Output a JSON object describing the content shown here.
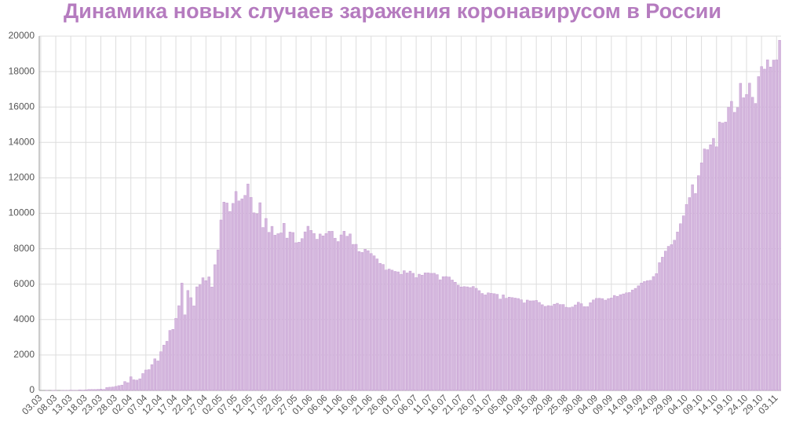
{
  "chart_data": {
    "type": "bar",
    "title": "Динамика новых случаев заражения коронавирусом в России",
    "categories": [
      "03.03",
      null,
      null,
      null,
      null,
      "08.03",
      null,
      null,
      null,
      null,
      "13.03",
      null,
      null,
      null,
      null,
      "18.03",
      null,
      null,
      null,
      null,
      "23.03",
      null,
      null,
      null,
      null,
      "28.03",
      null,
      null,
      null,
      null,
      "02.04",
      null,
      null,
      null,
      null,
      "07.04",
      null,
      null,
      null,
      null,
      "12.04",
      null,
      null,
      null,
      null,
      "17.04",
      null,
      null,
      null,
      null,
      "22.04",
      null,
      null,
      null,
      null,
      "27.04",
      null,
      null,
      null,
      null,
      "02.05",
      null,
      null,
      null,
      null,
      "07.05",
      null,
      null,
      null,
      null,
      "12.05",
      null,
      null,
      null,
      null,
      "17.05",
      null,
      null,
      null,
      null,
      "22.05",
      null,
      null,
      null,
      null,
      "27.05",
      null,
      null,
      null,
      null,
      "01.06",
      null,
      null,
      null,
      null,
      "06.06",
      null,
      null,
      null,
      null,
      "11.06",
      null,
      null,
      null,
      null,
      "16.06",
      null,
      null,
      null,
      null,
      "21.06",
      null,
      null,
      null,
      null,
      "26.06",
      null,
      null,
      null,
      null,
      "01.07",
      null,
      null,
      null,
      null,
      "06.07",
      null,
      null,
      null,
      null,
      "11.07",
      null,
      null,
      null,
      null,
      "16.07",
      null,
      null,
      null,
      null,
      "21.07",
      null,
      null,
      null,
      null,
      "26.07",
      null,
      null,
      null,
      null,
      "31.07",
      null,
      null,
      null,
      null,
      "05.08",
      null,
      null,
      null,
      null,
      "10.08",
      null,
      null,
      null,
      null,
      "15.08",
      null,
      null,
      null,
      null,
      "20.08",
      null,
      null,
      null,
      null,
      "25.08",
      null,
      null,
      null,
      null,
      "30.08",
      null,
      null,
      null,
      null,
      "04.09",
      null,
      null,
      null,
      null,
      "09.09",
      null,
      null,
      null,
      null,
      "14.09",
      null,
      null,
      null,
      null,
      "19.09",
      null,
      null,
      null,
      null,
      "24.09",
      null,
      null,
      null,
      null,
      "29.09",
      null,
      null,
      null,
      null,
      "04.10",
      null,
      null,
      null,
      null,
      "09.10",
      null,
      null,
      null,
      null,
      "14.10",
      null,
      null,
      null,
      null,
      "19.10",
      null,
      null,
      null,
      null,
      "24.10",
      null,
      null,
      null,
      null,
      "29.10",
      null,
      null,
      null,
      null,
      "03.11",
      null
    ],
    "values": [
      0,
      0,
      1,
      0,
      6,
      3,
      0,
      3,
      8,
      6,
      17,
      14,
      4,
      30,
      21,
      33,
      52,
      54,
      53,
      61,
      71,
      57,
      163,
      182,
      196,
      228,
      270,
      302,
      501,
      440,
      771,
      601,
      582,
      658,
      954,
      1154,
      1175,
      1459,
      1786,
      1667,
      2186,
      2558,
      2774,
      3388,
      3448,
      4070,
      4785,
      6060,
      4268,
      5642,
      5236,
      4774,
      5849,
      5966,
      6361,
      6198,
      6411,
      5841,
      7099,
      7933,
      9623,
      10633,
      10581,
      10102,
      10559,
      11231,
      10699,
      10817,
      11012,
      11656,
      10899,
      10028,
      9974,
      10598,
      9200,
      9709,
      8926,
      9263,
      8764,
      8849,
      8894,
      9434,
      8599,
      8946,
      8915,
      8338,
      8371,
      8572,
      8952,
      9268,
      9035,
      8863,
      8536,
      8831,
      8726,
      8855,
      8984,
      8985,
      8595,
      8404,
      8779,
      8987,
      8706,
      8835,
      8246,
      8248,
      7843,
      7790,
      7972,
      7889,
      7728,
      7600,
      7425,
      7176,
      7113,
      6800,
      6852,
      6791,
      6719,
      6693,
      6556,
      6760,
      6632,
      6736,
      6611,
      6368,
      6562,
      6509,
      6635,
      6635,
      6611,
      6615,
      6537,
      6248,
      6422,
      6428,
      6406,
      6234,
      6109,
      5940,
      5842,
      5862,
      5848,
      5811,
      5871,
      5765,
      5635,
      5475,
      5395,
      5509,
      5482,
      5462,
      5427,
      5159,
      5394,
      5204,
      5267,
      5241,
      5212,
      5189,
      5118,
      4945,
      5102,
      5057,
      5061,
      5081,
      4969,
      4839,
      4748,
      4790,
      4767,
      4870,
      4921,
      4852,
      4852,
      4696,
      4676,
      4711,
      4829,
      4980,
      4897,
      4729,
      4729,
      4952,
      5110,
      5195,
      5205,
      5185,
      5099,
      5185,
      5218,
      5363,
      5310,
      5406,
      5449,
      5509,
      5529,
      5670,
      5762,
      5905,
      6065,
      6148,
      6196,
      6215,
      6431,
      6595,
      7212,
      7523,
      7867,
      8135,
      8232,
      8481,
      8945,
      9412,
      9859,
      10499,
      10888,
      11615,
      11115,
      12126,
      12846,
      13634,
      13592,
      13868,
      14231,
      13754,
      15150,
      15099,
      15150,
      15982,
      16319,
      15700,
      15971,
      17340,
      16521,
      16710,
      17347,
      16550,
      16202,
      17717,
      18283,
      18140,
      18665,
      18257,
      18648,
      18665,
      19768
    ],
    "color": "#d5b8de",
    "ylim": [
      0,
      20000
    ],
    "yticks": [
      0,
      2000,
      4000,
      6000,
      8000,
      10000,
      12000,
      14000,
      16000,
      18000,
      20000
    ],
    "grid": true
  }
}
